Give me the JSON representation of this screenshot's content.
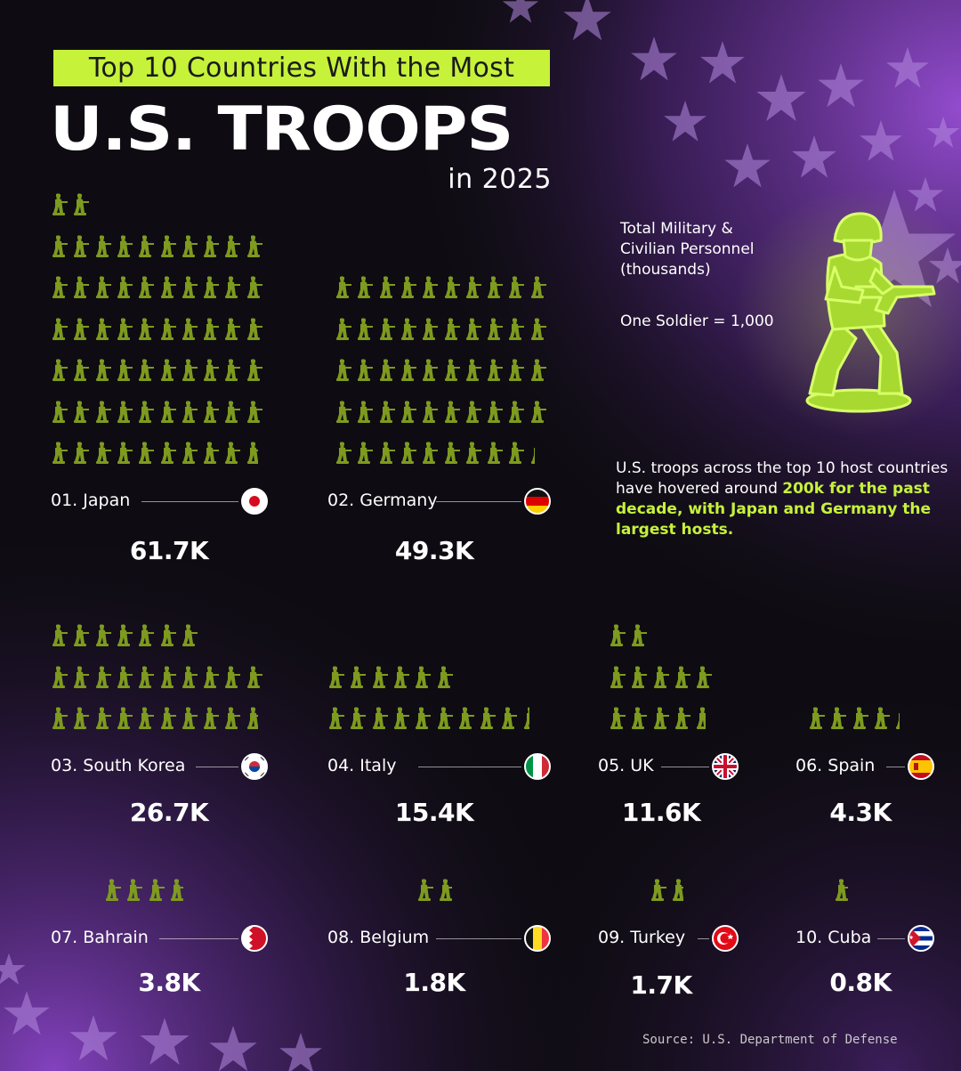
{
  "header": {
    "tagline": "Top 10 Countries With the Most",
    "title": "U.S. TROOPS",
    "year": "in 2025"
  },
  "legend": {
    "label": "Total Military &\nCivilian Personnel\n(thousands)",
    "unit": "One Soldier = 1,000"
  },
  "note": {
    "prefix": "U.S. troops across the top 10 host countries have hovered around ",
    "highlight": "200k for the past decade, with Japan and Germany the largest hosts."
  },
  "source": "Source: U.S. Department of Defense",
  "colors": {
    "accent": "#c6f23a",
    "soldier": "#7e9a1f",
    "purple": "#8a45c8"
  },
  "chart_data": {
    "type": "pictograph",
    "unit_value": 1000,
    "value_unit": "K",
    "countries": [
      {
        "rank": "01.",
        "name": "Japan",
        "label": "01. Japan",
        "value": 61.7,
        "display": "61.7K",
        "flag": "japan-flag"
      },
      {
        "rank": "02.",
        "name": "Germany",
        "label": "02. Germany",
        "value": 49.3,
        "display": "49.3K",
        "flag": "germany-flag"
      },
      {
        "rank": "03.",
        "name": "South Korea",
        "label": "03. South Korea",
        "value": 26.7,
        "display": "26.7K",
        "flag": "south-korea-flag"
      },
      {
        "rank": "04.",
        "name": "Italy",
        "label": "04. Italy",
        "value": 15.4,
        "display": "15.4K",
        "flag": "italy-flag"
      },
      {
        "rank": "05.",
        "name": "UK",
        "label": "05. UK",
        "value": 11.6,
        "display": "11.6K",
        "flag": "uk-flag"
      },
      {
        "rank": "06.",
        "name": "Spain",
        "label": "06. Spain",
        "value": 4.3,
        "display": "4.3K",
        "flag": "spain-flag"
      },
      {
        "rank": "07.",
        "name": "Bahrain",
        "label": "07. Bahrain",
        "value": 3.8,
        "display": "3.8K",
        "flag": "bahrain-flag"
      },
      {
        "rank": "08.",
        "name": "Belgium",
        "label": "08. Belgium",
        "value": 1.8,
        "display": "1.8K",
        "flag": "belgium-flag"
      },
      {
        "rank": "09.",
        "name": "Turkey",
        "label": "09. Turkey",
        "value": 1.7,
        "display": "1.7K",
        "flag": "turkey-flag"
      },
      {
        "rank": "10.",
        "name": "Cuba",
        "label": "10. Cuba",
        "value": 0.8,
        "display": "0.8K",
        "flag": "cuba-flag"
      }
    ]
  }
}
